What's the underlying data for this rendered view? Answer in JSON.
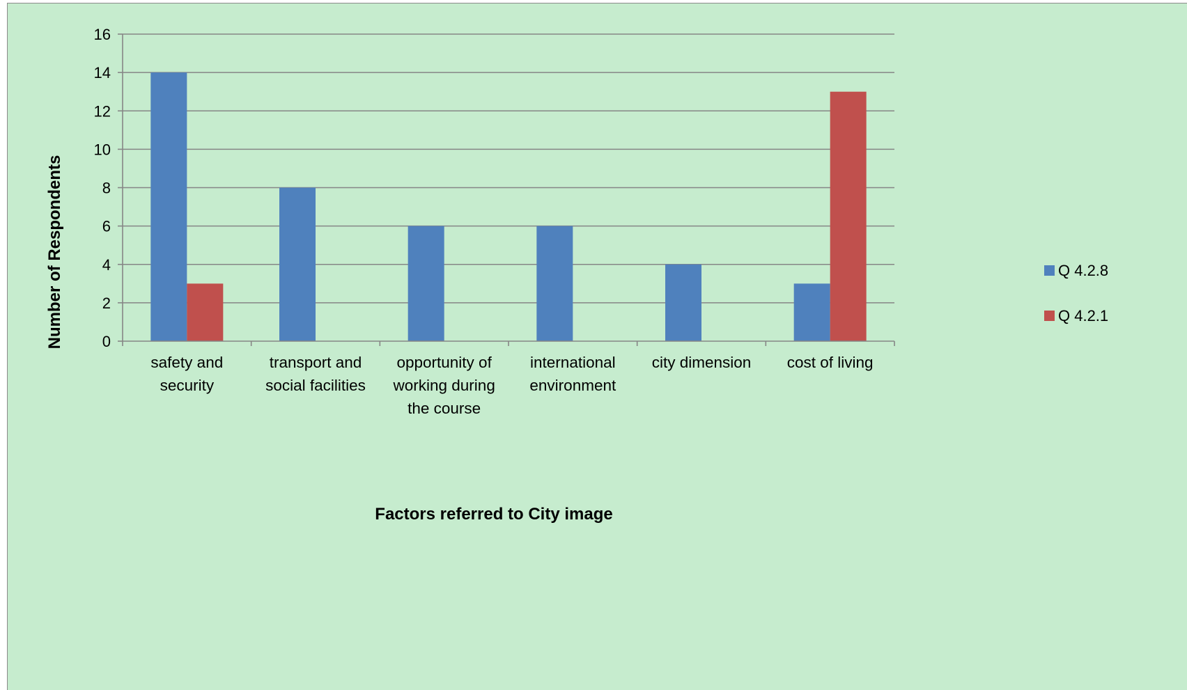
{
  "chart_data": {
    "type": "bar",
    "title": "",
    "xlabel": "Factors referred to City image",
    "ylabel": "Number of Respondents",
    "ylim": [
      0,
      16
    ],
    "yticks": [
      0,
      2,
      4,
      6,
      8,
      10,
      12,
      14,
      16
    ],
    "grid": true,
    "legend_position": "right",
    "categories": [
      [
        "safety and",
        "security"
      ],
      [
        "transport and",
        "social facilities"
      ],
      [
        "opportunity of",
        "working during",
        "the course"
      ],
      [
        "international",
        "environment"
      ],
      [
        "city dimension"
      ],
      [
        "cost of living"
      ]
    ],
    "series": [
      {
        "name": "Q 4.2.8",
        "color": "#4f81bd",
        "values": [
          14,
          8,
          6,
          6,
          4,
          3
        ]
      },
      {
        "name": "Q 4.2.1",
        "color": "#c0504d",
        "values": [
          3,
          0,
          0,
          0,
          0,
          13
        ]
      }
    ],
    "background_color": "#c6ecce",
    "gridline_color": "#868686"
  }
}
